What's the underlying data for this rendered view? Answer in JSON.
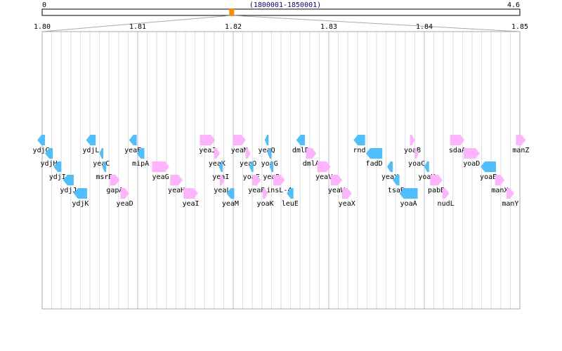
{
  "overview": {
    "start_label": "0",
    "end_label": "4.6",
    "range_label": "(1800001-1850001)",
    "genome_start_mb": 0,
    "genome_end_mb": 4.6,
    "window_start_mb": 1.800001,
    "window_end_mb": 1.850001
  },
  "scale": {
    "min": 1.8,
    "max": 1.85,
    "tick_labels": [
      "1.80",
      "1.81",
      "1.82",
      "1.83",
      "1.84",
      "1.85"
    ],
    "tick_values": [
      1.8,
      1.81,
      1.82,
      1.83,
      1.84,
      1.85
    ]
  },
  "colors": {
    "forward_strand": "#ffb3ff",
    "reverse_strand": "#4dbfff",
    "locator": "#ff8800",
    "link_text": "#000099",
    "axis": "#aaaaaa",
    "grid_minor": "#dddddd",
    "grid_major": "#bbbbbb"
  },
  "genes": [
    {
      "name": "ydjG",
      "start": 1.7995,
      "end": 1.8003,
      "strand": "-",
      "row": 0
    },
    {
      "name": "ydjH",
      "start": 1.8003,
      "end": 1.8011,
      "strand": "-",
      "row": 1
    },
    {
      "name": "ydjI",
      "start": 1.8012,
      "end": 1.802,
      "strand": "-",
      "row": 2
    },
    {
      "name": "ydjJ",
      "start": 1.8022,
      "end": 1.8033,
      "strand": "-",
      "row": 3
    },
    {
      "name": "ydjK",
      "start": 1.8033,
      "end": 1.8047,
      "strand": "-",
      "row": 4
    },
    {
      "name": "ydjL",
      "start": 1.8046,
      "end": 1.8056,
      "strand": "-",
      "row": 0
    },
    {
      "name": "yeaC",
      "start": 1.806,
      "end": 1.8064,
      "strand": "-",
      "row": 1
    },
    {
      "name": "msrB",
      "start": 1.8063,
      "end": 1.8067,
      "strand": "-",
      "row": 2
    },
    {
      "name": "gapA",
      "start": 1.8071,
      "end": 1.8081,
      "strand": "+",
      "row": 3
    },
    {
      "name": "yeaD",
      "start": 1.8082,
      "end": 1.8091,
      "strand": "+",
      "row": 4
    },
    {
      "name": "yeaE",
      "start": 1.8091,
      "end": 1.8099,
      "strand": "-",
      "row": 0
    },
    {
      "name": "mipA",
      "start": 1.8099,
      "end": 1.8107,
      "strand": "-",
      "row": 1
    },
    {
      "name": "yeaG",
      "start": 1.8115,
      "end": 1.8133,
      "strand": "+",
      "row": 2
    },
    {
      "name": "yeaH",
      "start": 1.8134,
      "end": 1.8147,
      "strand": "+",
      "row": 3
    },
    {
      "name": "yeaI",
      "start": 1.8148,
      "end": 1.8163,
      "strand": "+",
      "row": 4
    },
    {
      "name": "yeaJ",
      "start": 1.8165,
      "end": 1.8181,
      "strand": "+",
      "row": 0
    },
    {
      "name": "yeaK",
      "start": 1.818,
      "end": 1.8186,
      "strand": "+",
      "row": 1
    },
    {
      "name": "yeaI",
      "start": 1.8185,
      "end": 1.8189,
      "strand": "-",
      "row": 2
    },
    {
      "name": "yeaL",
      "start": 1.8186,
      "end": 1.8191,
      "strand": "+",
      "row": 3
    },
    {
      "name": "yeaM",
      "start": 1.8193,
      "end": 1.8201,
      "strand": "-",
      "row": 4
    },
    {
      "name": "yeaN",
      "start": 1.82,
      "end": 1.8213,
      "strand": "+",
      "row": 0
    },
    {
      "name": "yeaO",
      "start": 1.8213,
      "end": 1.8218,
      "strand": "+",
      "row": 1
    },
    {
      "name": "yoaF",
      "start": 1.8217,
      "end": 1.8221,
      "strand": "-",
      "row": 2
    },
    {
      "name": "yeaP",
      "start": 1.822,
      "end": 1.8229,
      "strand": "+",
      "row": 3
    },
    {
      "name": "yoaK",
      "start": 1.8231,
      "end": 1.8236,
      "strand": "+",
      "row": 4
    },
    {
      "name": "yeaQ",
      "start": 1.8233,
      "end": 1.8237,
      "strand": "-",
      "row": 0
    },
    {
      "name": "yoaG",
      "start": 1.8236,
      "end": 1.824,
      "strand": "-",
      "row": 1
    },
    {
      "name": "yeaR",
      "start": 1.8238,
      "end": 1.8242,
      "strand": "-",
      "row": 2
    },
    {
      "name": "insL-4",
      "start": 1.8242,
      "end": 1.8254,
      "strand": "+",
      "row": 3
    },
    {
      "name": "leuE",
      "start": 1.8256,
      "end": 1.8263,
      "strand": "-",
      "row": 4
    },
    {
      "name": "dmlR",
      "start": 1.8266,
      "end": 1.8275,
      "strand": "-",
      "row": 0
    },
    {
      "name": "dmlA",
      "start": 1.8276,
      "end": 1.8287,
      "strand": "+",
      "row": 1
    },
    {
      "name": "yeaV",
      "start": 1.8288,
      "end": 1.8302,
      "strand": "+",
      "row": 2
    },
    {
      "name": "yeaW",
      "start": 1.8302,
      "end": 1.8314,
      "strand": "+",
      "row": 3
    },
    {
      "name": "yeaX",
      "start": 1.8314,
      "end": 1.8324,
      "strand": "+",
      "row": 4
    },
    {
      "name": "rnd",
      "start": 1.8326,
      "end": 1.8338,
      "strand": "-",
      "row": 0
    },
    {
      "name": "fadD",
      "start": 1.8339,
      "end": 1.8356,
      "strand": "-",
      "row": 1
    },
    {
      "name": "yeaY",
      "start": 1.8361,
      "end": 1.8367,
      "strand": "-",
      "row": 2
    },
    {
      "name": "tsaB",
      "start": 1.8367,
      "end": 1.8374,
      "strand": "-",
      "row": 3
    },
    {
      "name": "yoaA",
      "start": 1.8374,
      "end": 1.8393,
      "strand": "-",
      "row": 4
    },
    {
      "name": "yoaB",
      "start": 1.8385,
      "end": 1.839,
      "strand": "+",
      "row": 0
    },
    {
      "name": "yoaC",
      "start": 1.839,
      "end": 1.8394,
      "strand": "+",
      "row": 1
    },
    {
      "name": "yoaH",
      "start": 1.84,
      "end": 1.8405,
      "strand": "-",
      "row": 2
    },
    {
      "name": "pabB",
      "start": 1.8406,
      "end": 1.8419,
      "strand": "+",
      "row": 3
    },
    {
      "name": "nudL",
      "start": 1.8419,
      "end": 1.8426,
      "strand": "+",
      "row": 4
    },
    {
      "name": "sdaA",
      "start": 1.8427,
      "end": 1.8442,
      "strand": "+",
      "row": 0
    },
    {
      "name": "yoaD",
      "start": 1.8441,
      "end": 1.8458,
      "strand": "+",
      "row": 1
    },
    {
      "name": "yoaE",
      "start": 1.8459,
      "end": 1.8475,
      "strand": "-",
      "row": 2
    },
    {
      "name": "manX",
      "start": 1.8474,
      "end": 1.8484,
      "strand": "+",
      "row": 3
    },
    {
      "name": "manY",
      "start": 1.8486,
      "end": 1.8494,
      "strand": "+",
      "row": 4
    },
    {
      "name": "manZ",
      "start": 1.8496,
      "end": 1.8506,
      "strand": "+",
      "row": 0
    }
  ]
}
